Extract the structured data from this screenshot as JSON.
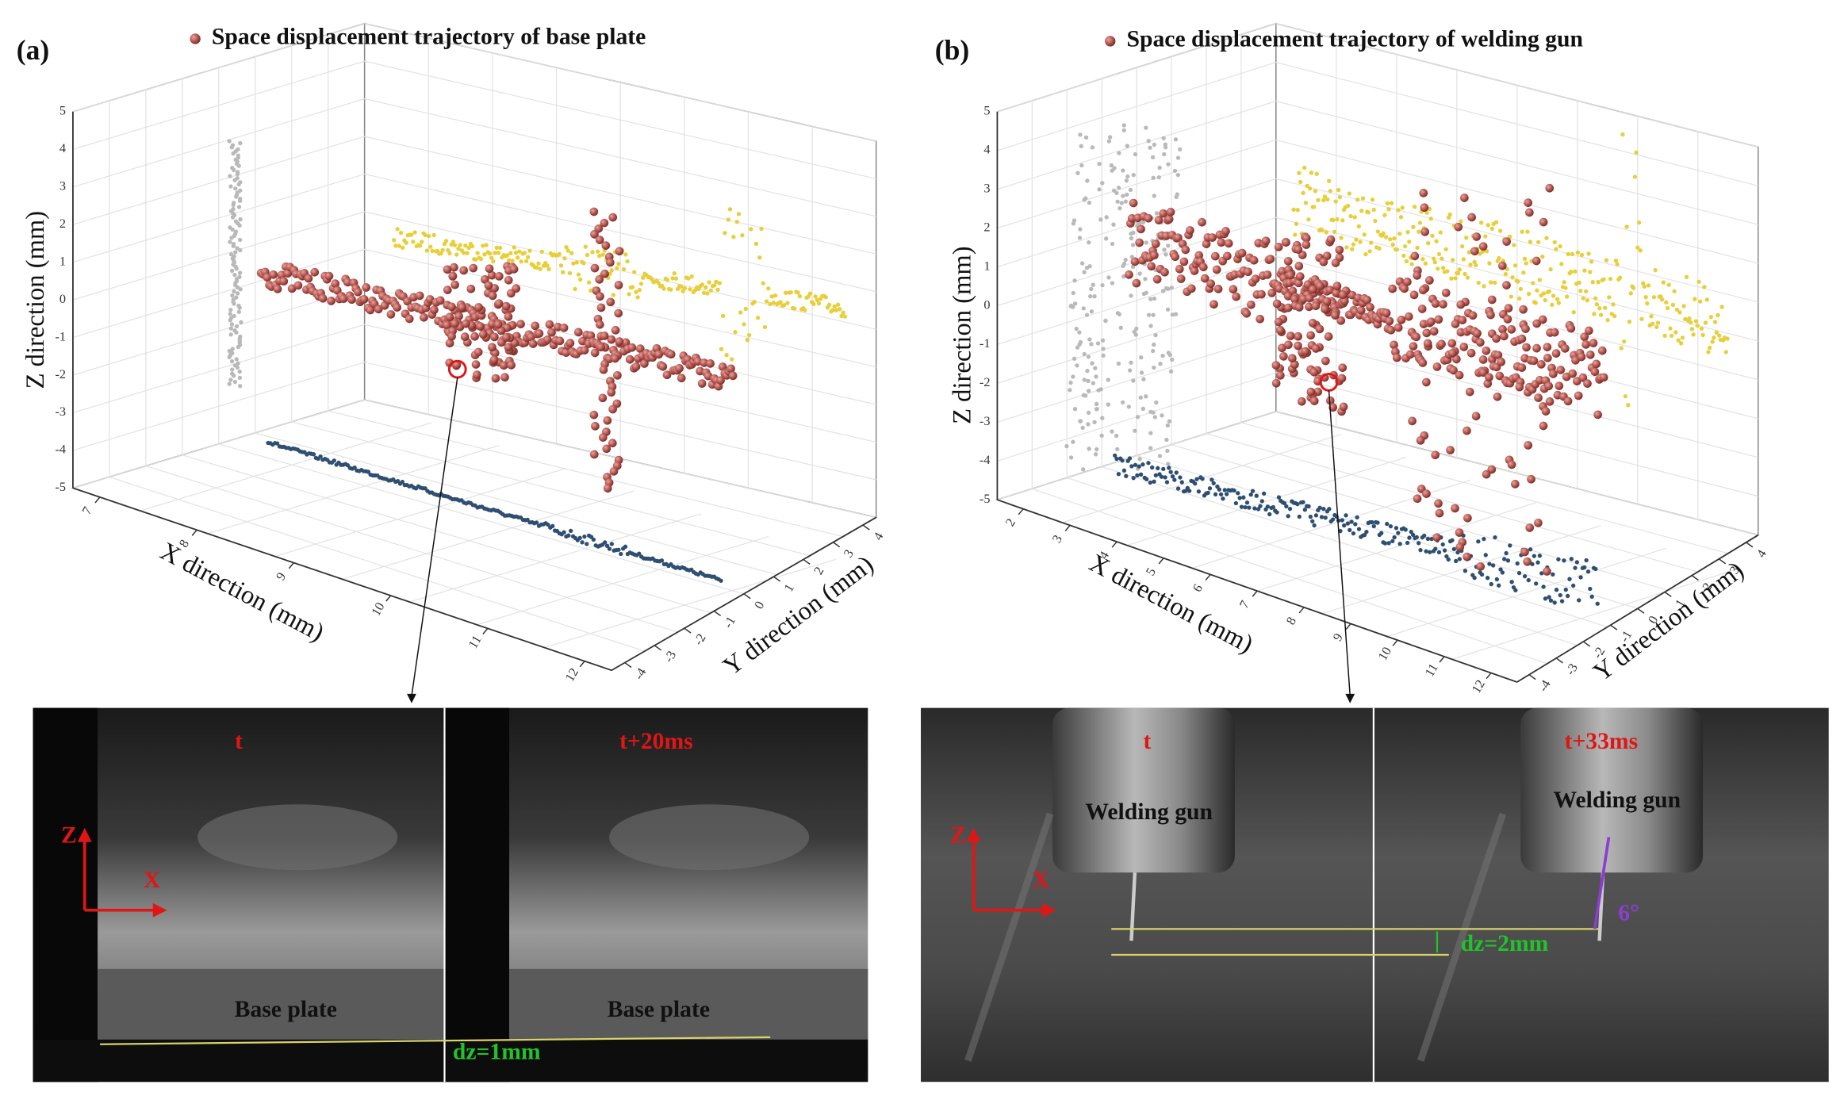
{
  "panels": [
    {
      "label": "(a)",
      "legend": "Space displacement trajectory of base plate",
      "z_title": "Z direction (mm)",
      "z_ticks": [
        5,
        4,
        3,
        2,
        1,
        0,
        -1,
        -2,
        -3,
        -4,
        -5
      ],
      "x_title": "X direction (mm)",
      "x_ticks": [
        7,
        8,
        9,
        10,
        11,
        12
      ],
      "y_title": "Y direction (mm)",
      "y_ticks": [
        -4,
        -3,
        -2,
        -1,
        0,
        1,
        2,
        3,
        4
      ],
      "photo": {
        "frames": [
          {
            "time": "t",
            "object": "Base plate"
          },
          {
            "time": "t+20ms",
            "object": "Base plate"
          }
        ],
        "z_arrow": "Z",
        "x_arrow": "X",
        "dz": "dz=1mm"
      }
    },
    {
      "label": "(b)",
      "legend": "Space displacement trajectory of welding gun",
      "z_title": "Z direction (mm)",
      "z_ticks": [
        5,
        4,
        3,
        2,
        1,
        0,
        -1,
        -2,
        -3,
        -4,
        -5
      ],
      "x_title": "X direction (mm)",
      "x_ticks": [
        2,
        3,
        4,
        5,
        6,
        7,
        8,
        9,
        10,
        11,
        12
      ],
      "y_title": "Y direction (mm)",
      "y_ticks": [
        -4,
        -3,
        -2,
        -1,
        0,
        1,
        2,
        3,
        4
      ],
      "photo": {
        "frames": [
          {
            "time": "t",
            "object": "Welding gun"
          },
          {
            "time": "t+33ms",
            "object": "Welding gun"
          }
        ],
        "z_arrow": "Z",
        "x_arrow": "X",
        "dz": "dz=2mm",
        "angle": "6°"
      }
    }
  ]
}
